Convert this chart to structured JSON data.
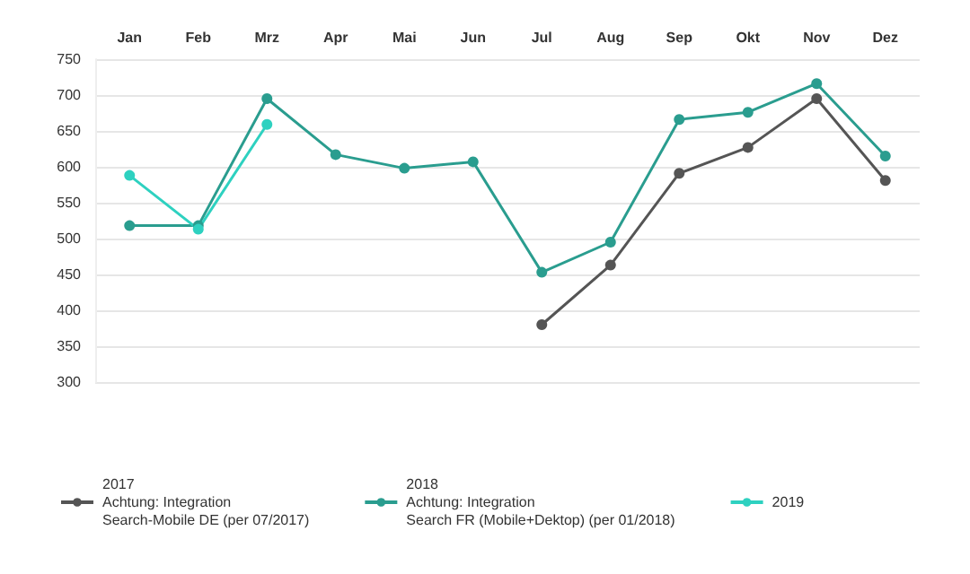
{
  "chart_data": {
    "type": "line",
    "categories": [
      "Jan",
      "Feb",
      "Mrz",
      "Apr",
      "Mai",
      "Jun",
      "Jul",
      "Aug",
      "Sep",
      "Okt",
      "Nov",
      "Dez"
    ],
    "series": [
      {
        "name": "2017\nAchtung: Integration\nSearch-Mobile DE (per 07/2017)",
        "color": "#555555",
        "values": [
          null,
          null,
          null,
          null,
          null,
          null,
          380,
          463,
          591,
          627,
          695,
          581
        ]
      },
      {
        "name": "2018\nAchtung: Integration\nSearch FR (Mobile+Dektop) (per 01/2018)",
        "color": "#2a9d8f",
        "values": [
          518,
          518,
          695,
          617,
          598,
          607,
          453,
          495,
          666,
          676,
          716,
          615
        ]
      },
      {
        "name": "2019",
        "color": "#2ed1c0",
        "values": [
          588,
          513,
          659,
          null,
          null,
          null,
          null,
          null,
          null,
          null,
          null,
          null
        ]
      }
    ],
    "ylim": [
      300,
      750
    ],
    "yticks": [
      300,
      350,
      400,
      450,
      500,
      550,
      600,
      650,
      700,
      750
    ],
    "grid": "y",
    "legend": "bottom",
    "marker": "circle",
    "line_style": "solid"
  }
}
